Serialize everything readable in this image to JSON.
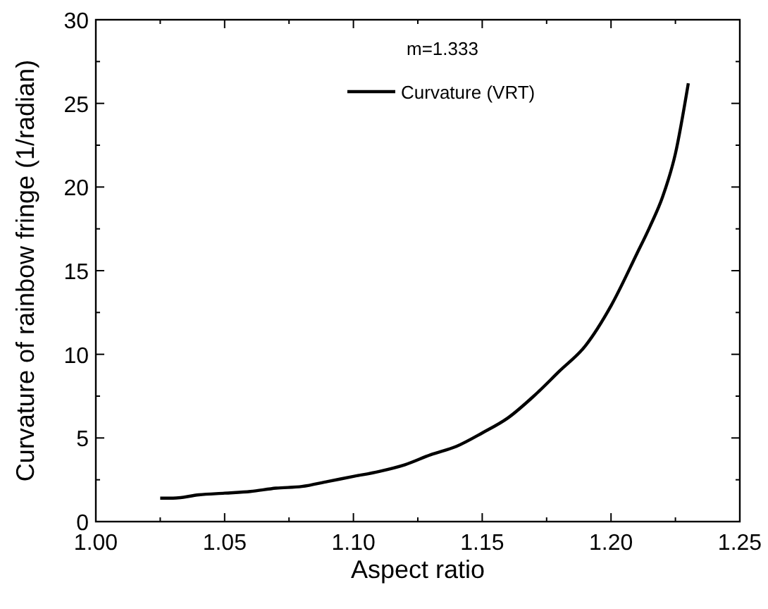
{
  "chart_data": {
    "type": "line",
    "xlabel": "Aspect ratio",
    "ylabel": "Curvature of rainbow fringe (1/radian)",
    "legend_title": "m=1.333",
    "legend": "top",
    "grid": false,
    "line_style": "solid",
    "xlim": [
      1.0,
      1.25
    ],
    "xticks": [
      {
        "value": 1.0,
        "label": "1.00"
      },
      {
        "value": 1.05,
        "label": "1.05"
      },
      {
        "value": 1.1,
        "label": "1.10"
      },
      {
        "value": 1.15,
        "label": "1.15"
      },
      {
        "value": 1.2,
        "label": "1.20"
      },
      {
        "value": 1.25,
        "label": "1.25"
      }
    ],
    "ylim": [
      0,
      30
    ],
    "yticks": [
      0,
      5,
      10,
      15,
      20,
      25,
      30
    ],
    "x": [
      1.025,
      1.03,
      1.04,
      1.05,
      1.06,
      1.07,
      1.08,
      1.09,
      1.1,
      1.11,
      1.12,
      1.13,
      1.14,
      1.15,
      1.16,
      1.17,
      1.18,
      1.19,
      1.2,
      1.21,
      1.215,
      1.22,
      1.225,
      1.23
    ],
    "series": [
      {
        "name": "Curvature (VRT)",
        "color": "#000000",
        "values": [
          1.4,
          1.4,
          1.6,
          1.7,
          1.8,
          2.0,
          2.1,
          2.4,
          2.7,
          3.0,
          3.4,
          4.0,
          4.5,
          5.3,
          6.2,
          7.5,
          9.0,
          10.5,
          12.9,
          16.0,
          17.6,
          19.4,
          22.0,
          26.2
        ]
      }
    ]
  }
}
